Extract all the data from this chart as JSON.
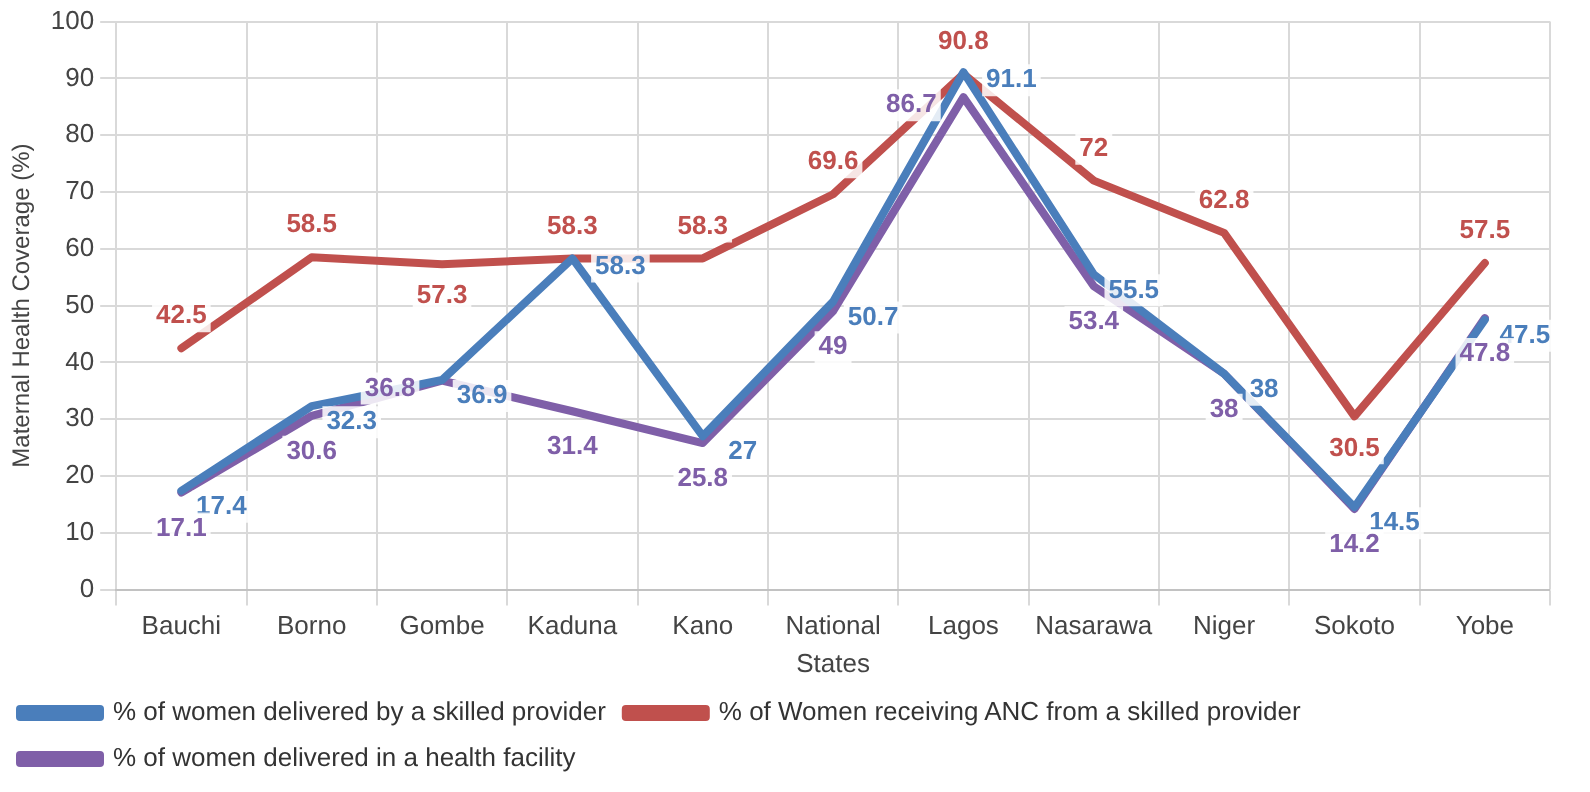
{
  "chart_data": {
    "type": "line",
    "xlabel": "States",
    "ylabel": "Maternal Health Coverage (%)",
    "categories": [
      "Bauchi",
      "Borno",
      "Gombe",
      "Kaduna",
      "Kano",
      "National",
      "Lagos",
      "Nasarawa",
      "Niger",
      "Sokoto",
      "Yobe"
    ],
    "series": [
      {
        "name": "% of women delivered by a skilled provider",
        "color": "#4a7ebb",
        "values": [
          17.4,
          32.3,
          36.9,
          58.3,
          27,
          50.7,
          91.1,
          55.5,
          38,
          14.5,
          47.5
        ]
      },
      {
        "name": "% of Women receiving ANC from a skilled provider",
        "color": "#c0504d",
        "values": [
          42.5,
          58.5,
          57.3,
          58.3,
          58.3,
          69.6,
          90.8,
          72,
          62.8,
          30.5,
          57.5
        ]
      },
      {
        "name": "% of women delivered in a health facility",
        "color": "#7f5fa8",
        "values": [
          17.1,
          30.6,
          36.8,
          31.4,
          25.8,
          49,
          86.7,
          53.4,
          38,
          14.2,
          47.8
        ]
      }
    ],
    "ylim": [
      0,
      100
    ],
    "yticks": [
      0,
      10,
      20,
      30,
      40,
      50,
      60,
      70,
      80,
      90,
      100
    ],
    "grid": true,
    "legend": "bottom",
    "marker": "none",
    "line_style": "solid",
    "data_labels": true
  }
}
